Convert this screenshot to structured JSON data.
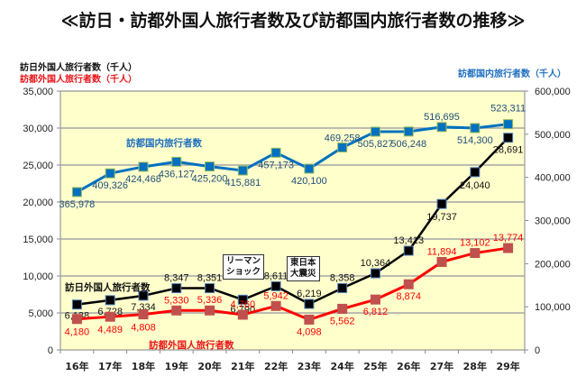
{
  "title": "≪訪日・訪都外国人旅行者数及び訪都国内旅行者数の推移≫",
  "chart_data": {
    "type": "line",
    "title": "≪訪日・訪都外国人旅行者数及び訪都国内旅行者数の推移≫",
    "categories": [
      "16年",
      "17年",
      "18年",
      "19年",
      "20年",
      "21年",
      "22年",
      "23年",
      "24年",
      "25年",
      "26年",
      "27年",
      "28年",
      "29年"
    ],
    "left_axis": {
      "titles": [
        "訪日外国人旅行者数（千人）",
        "訪都外国人旅行者数（千人）"
      ],
      "ylim": [
        0,
        35000
      ],
      "ticks": [
        "0",
        "5,000",
        "10,000",
        "15,000",
        "20,000",
        "25,000",
        "30,000",
        "35,000"
      ],
      "tick_values": [
        0,
        5000,
        10000,
        15000,
        20000,
        25000,
        30000,
        35000
      ]
    },
    "right_axis": {
      "title": "訪都国内旅行者数（千人）",
      "ylim": [
        0,
        600000
      ],
      "ticks": [
        "0",
        "100,000",
        "200,000",
        "300,000",
        "400,000",
        "500,000",
        "600,000"
      ],
      "tick_values": [
        0,
        100000,
        200000,
        300000,
        400000,
        500000,
        600000
      ]
    },
    "grid": true,
    "series": [
      {
        "name": "訪都国内旅行者数",
        "axis": "right",
        "color": "#0070c0",
        "values": [
          365978,
          409326,
          424468,
          436127,
          425200,
          415881,
          457173,
          420100,
          469258,
          505827,
          506248,
          516695,
          514300,
          523311
        ],
        "labels": [
          "365,978",
          "409,326",
          "424,468",
          "436,127",
          "425,200",
          "415,881",
          "457,173",
          "420,100",
          "469,258",
          "505,827",
          "506,248",
          "516,695",
          "514,300",
          "523,311"
        ]
      },
      {
        "name": "訪日外国人旅行者数",
        "axis": "left",
        "color": "#000000",
        "values": [
          6138,
          6728,
          7334,
          8347,
          8351,
          6790,
          8611,
          6219,
          8358,
          10364,
          13413,
          19737,
          24040,
          28691
        ],
        "labels": [
          "6,138",
          "6,728",
          "7,334",
          "8,347",
          "8,351",
          "6,790",
          "8,611",
          "6,219",
          "8,358",
          "10,364",
          "13,413",
          "19,737",
          "24,040",
          "28,691"
        ]
      },
      {
        "name": "訪都外国人旅行者数",
        "axis": "left",
        "color": "#ff0000",
        "values": [
          4180,
          4489,
          4808,
          5330,
          5336,
          4760,
          5942,
          4098,
          5562,
          6812,
          8874,
          11894,
          13102,
          13774
        ],
        "labels": [
          "4,180",
          "4,489",
          "4,808",
          "5,330",
          "5,336",
          "4,760",
          "5,942",
          "4,098",
          "5,562",
          "6,812",
          "8,874",
          "11,894",
          "13,102",
          "13,774"
        ]
      }
    ],
    "annotations": [
      {
        "text_lines": [
          "リーマン",
          "ショック"
        ],
        "category": "21年"
      },
      {
        "text_lines": [
          "東日本",
          "大震災"
        ],
        "category": "23年"
      }
    ],
    "background_color": "#ffffcc"
  }
}
